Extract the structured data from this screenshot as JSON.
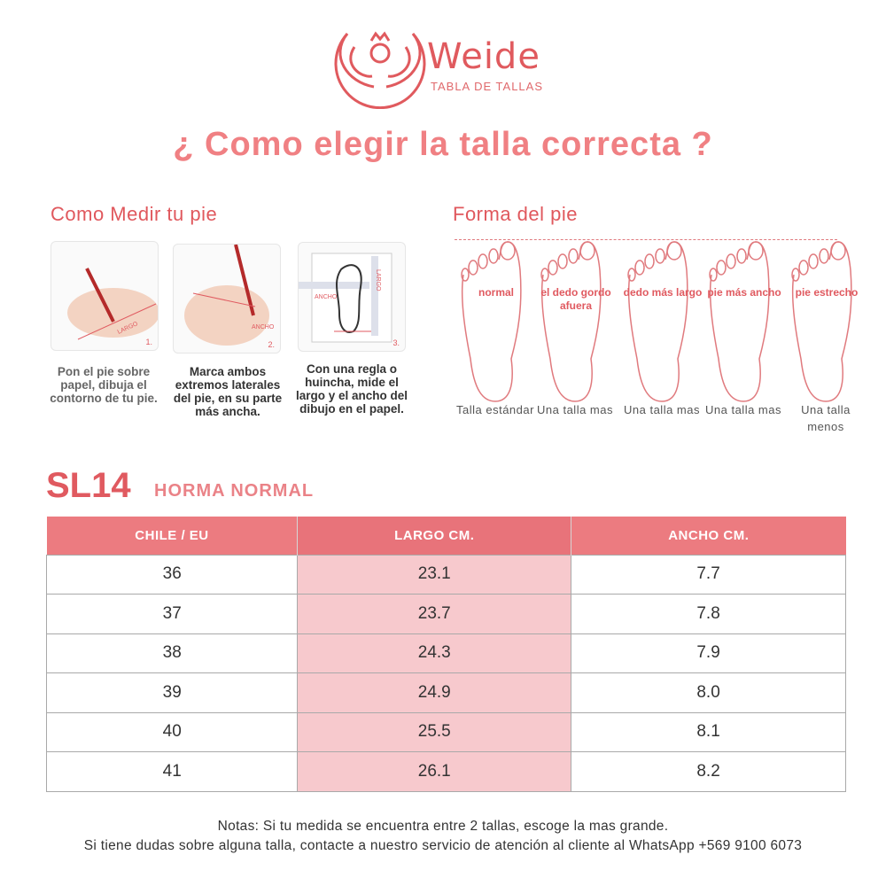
{
  "brand": {
    "name": "Weide",
    "subtitle": "TABLA DE TALLAS"
  },
  "title": "¿ Como elegir la talla correcta ?",
  "measure": {
    "heading": "Como Medir tu pie",
    "steps": [
      {
        "number": "1.",
        "photo_label": "LARGO",
        "caption": "Pon el pie sobre papel, dibuja el contorno de tu pie."
      },
      {
        "number": "2.",
        "photo_label": "ANCHO",
        "caption": "Marca ambos extremos laterales del pie, en su parte más ancha."
      },
      {
        "number": "3.",
        "photo_label": "LARGO",
        "photo_label2": "ANCHO",
        "caption": "Con una regla o huincha, mide el largo y el ancho del dibujo en el papel."
      }
    ]
  },
  "shape": {
    "heading": "Forma del pie",
    "feet": [
      {
        "label": "normal",
        "advice": "Talla estándar"
      },
      {
        "label": "el dedo gordo afuera",
        "advice": "Una talla mas"
      },
      {
        "label": "dedo más largo",
        "advice": "Una talla mas"
      },
      {
        "label": "pie más ancho",
        "advice": "Una talla mas"
      },
      {
        "label": "pie estrecho",
        "advice": "Una talla menos"
      }
    ]
  },
  "model": {
    "code": "SL14",
    "last": "HORMA NORMAL"
  },
  "table": {
    "headers": [
      "CHILE / EU",
      "LARGO CM.",
      "ANCHO CM."
    ],
    "rows": [
      [
        "36",
        "23.1",
        "7.7"
      ],
      [
        "37",
        "23.7",
        "7.8"
      ],
      [
        "38",
        "24.3",
        "7.9"
      ],
      [
        "39",
        "24.9",
        "8.0"
      ],
      [
        "40",
        "25.5",
        "8.1"
      ],
      [
        "41",
        "26.1",
        "8.2"
      ]
    ]
  },
  "notes": [
    "Notas: Si tu medida se encuentra entre 2 tallas, escoge la mas grande.",
    "Si tiene dudas sobre alguna talla, contacte a nuestro servicio de atención al cliente al WhatsApp +569 9100 6073"
  ],
  "colors": {
    "accent": "#e05a60",
    "header": "#ec7b80",
    "highlight": "#f7c9cd",
    "title": "#f08083"
  }
}
